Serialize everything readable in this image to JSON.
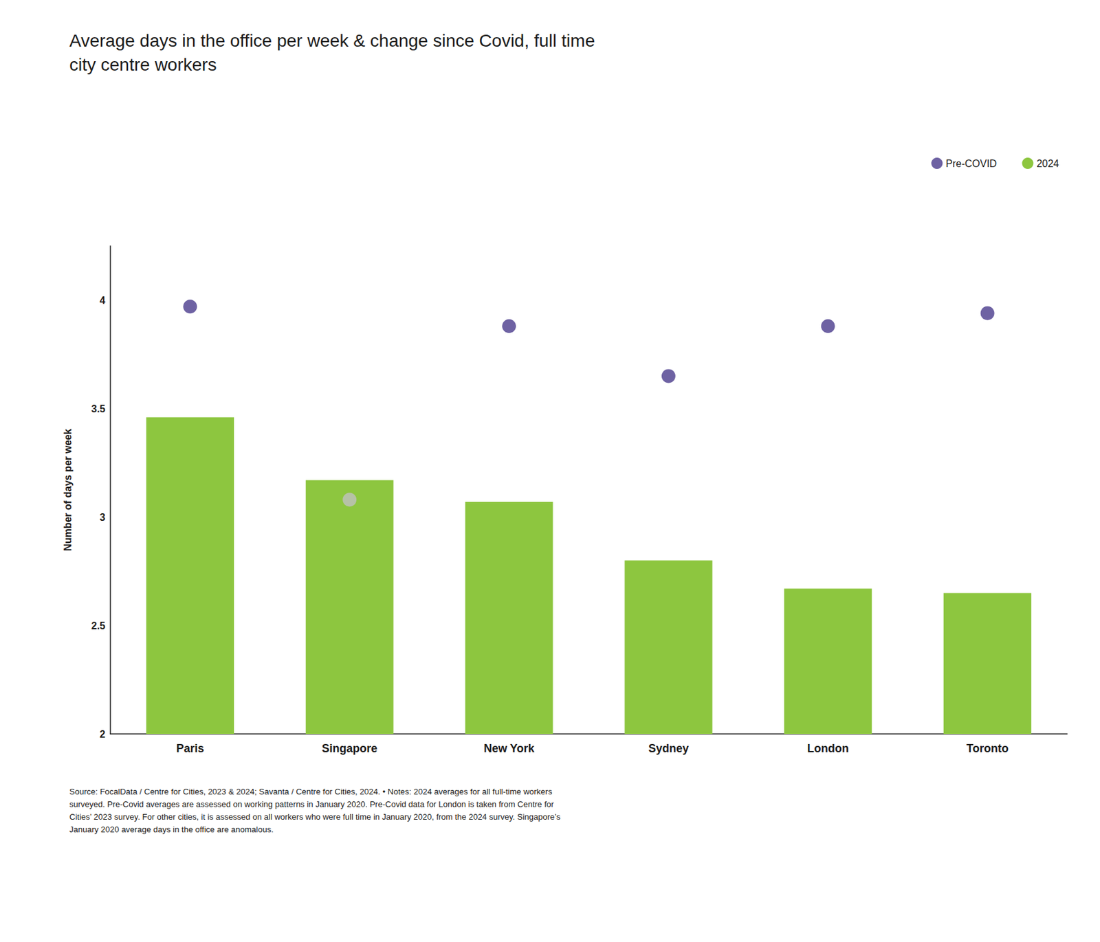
{
  "chart_data": {
    "type": "bar",
    "title": "Average days in the office per week & change since Covid, full time\ncity centre workers",
    "source": "Source: FocalData / Centre for Cities, 2023 & 2024; Savanta / Centre for Cities, 2024. • Notes: 2024 averages for all full-time workers\nsurveyed. Pre-Covid averages are assessed on working patterns in January 2020. Pre-Covid data for London is taken from Centre for\nCities’ 2023 survey. For other cities, it is assessed on all workers who were full time in January 2020, from the 2024 survey. Singapore’s\nJanuary 2020 average days in the office are anomalous.",
    "categories": [
      "Paris",
      "Singapore",
      "New York",
      "Sydney",
      "London",
      "Toronto"
    ],
    "series": [
      {
        "name": "2024",
        "type": "bar",
        "color": "#8dc63f",
        "values": [
          3.46,
          3.17,
          3.07,
          2.8,
          2.67,
          2.65
        ]
      },
      {
        "name": "Pre-COVID",
        "type": "scatter",
        "marker": "circle",
        "color": "#4a3b8c",
        "colors": [
          "#4a3b8c",
          "#c0c0c0",
          "#4a3b8c",
          "#4a3b8c",
          "#4a3b8c",
          "#4a3b8c"
        ],
        "values": [
          3.97,
          3.08,
          3.88,
          3.65,
          3.88,
          3.94
        ]
      }
    ],
    "ylabel": "Number of days per week",
    "ylim": [
      2.0,
      4.25
    ],
    "yticks": [
      2,
      2.5,
      3,
      3.5,
      4
    ],
    "grid": false,
    "legend": "upper right"
  }
}
